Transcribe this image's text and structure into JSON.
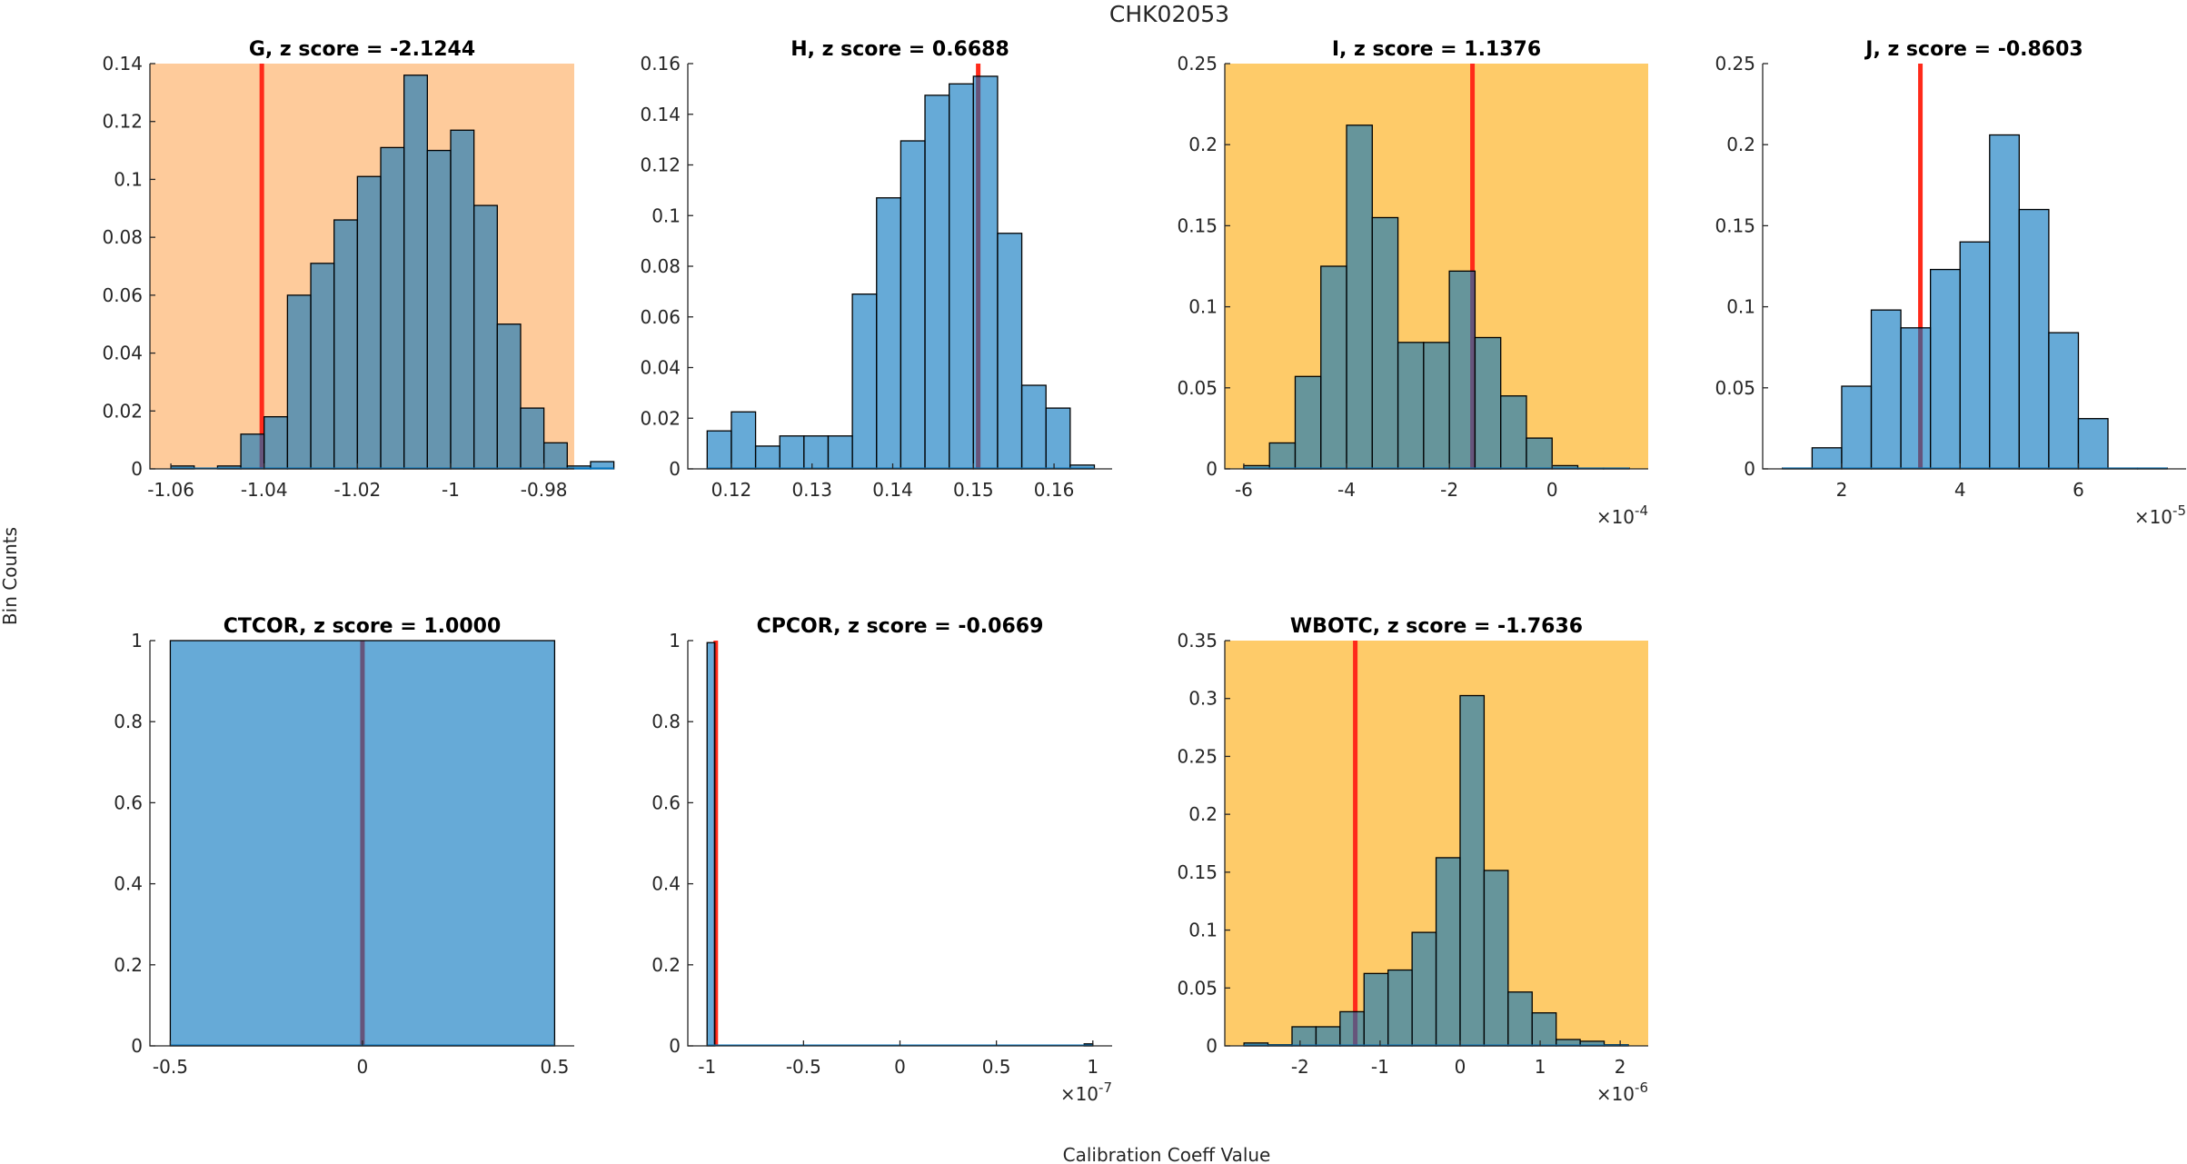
{
  "figure": {
    "title": "CHK02053",
    "xlabel": "Calibration Coeff Value",
    "ylabel": "Bin Counts"
  },
  "colors": {
    "bar_face": "#0072bd",
    "bar_alpha": 0.6,
    "bar_edge": "#000000",
    "marker_line": "#ff2a1a",
    "highlight_orange": "#fecb9b",
    "highlight_yellow": "#fecb69",
    "plain_bg": "#ffffff"
  },
  "chart_data": [
    {
      "type": "bar",
      "title": "G, z score = -2.1244",
      "name": "G",
      "z_score": -2.1244,
      "background": "orange",
      "bin_edges": [
        -1.06,
        -1.055,
        -1.05,
        -1.045,
        -1.04,
        -1.035,
        -1.03,
        -1.025,
        -1.02,
        -1.015,
        -1.01,
        -1.005,
        -1.0,
        -0.995,
        -0.99,
        -0.985,
        -0.98,
        -0.975,
        -0.97,
        -0.965
      ],
      "values": [
        0.001,
        0.0,
        0.001,
        0.012,
        0.018,
        0.06,
        0.071,
        0.086,
        0.101,
        0.111,
        0.136,
        0.11,
        0.117,
        0.091,
        0.05,
        0.021,
        0.009,
        0.001,
        0.0025
      ],
      "marker_value": -1.0405,
      "xlim": [
        -1.0645,
        -0.9735
      ],
      "ylim": [
        0,
        0.14
      ],
      "xticks": [
        -1.06,
        -1.04,
        -1.02,
        -1,
        -0.98
      ],
      "xtick_labels": [
        "-1.06",
        "-1.04",
        "-1.02",
        "-1",
        "-0.98"
      ],
      "yticks": [
        0,
        0.02,
        0.04,
        0.06,
        0.08,
        0.1,
        0.12,
        0.14
      ],
      "ytick_labels": [
        "0",
        "0.02",
        "0.04",
        "0.06",
        "0.08",
        "0.1",
        "0.12",
        "0.14"
      ],
      "x_exponent": ""
    },
    {
      "type": "bar",
      "title": "H, z score = 0.6688",
      "name": "H",
      "z_score": 0.6688,
      "background": "white",
      "bin_edges": [
        0.117,
        0.12,
        0.123,
        0.126,
        0.129,
        0.132,
        0.135,
        0.138,
        0.141,
        0.144,
        0.147,
        0.15,
        0.153,
        0.156,
        0.159,
        0.162,
        0.165
      ],
      "values": [
        0.015,
        0.0225,
        0.009,
        0.013,
        0.013,
        0.013,
        0.069,
        0.107,
        0.1295,
        0.1475,
        0.152,
        0.155,
        0.093,
        0.033,
        0.024,
        0.0015
      ],
      "marker_value": 0.1506,
      "xlim": [
        0.1146,
        0.1672
      ],
      "ylim": [
        0,
        0.16
      ],
      "xticks": [
        0.12,
        0.13,
        0.14,
        0.15,
        0.16
      ],
      "xtick_labels": [
        "0.12",
        "0.13",
        "0.14",
        "0.15",
        "0.16"
      ],
      "yticks": [
        0,
        0.02,
        0.04,
        0.06,
        0.08,
        0.1,
        0.12,
        0.14,
        0.16
      ],
      "ytick_labels": [
        "0",
        "0.02",
        "0.04",
        "0.06",
        "0.08",
        "0.1",
        "0.12",
        "0.14",
        "0.16"
      ],
      "x_exponent": ""
    },
    {
      "type": "bar",
      "title": "I, z score = 1.1376",
      "name": "I",
      "z_score": 1.1376,
      "background": "yellow",
      "bin_edges": [
        -6,
        -5.5,
        -5,
        -4.5,
        -4,
        -3.5,
        -3,
        -2.5,
        -2,
        -1.5,
        -1,
        -0.5,
        0,
        0.5,
        1,
        1.5
      ],
      "values": [
        0.002,
        0.016,
        0.057,
        0.125,
        0.212,
        0.155,
        0.078,
        0.078,
        0.122,
        0.081,
        0.045,
        0.019,
        0.002,
        0.0005,
        0.0005
      ],
      "marker_value": -1.55,
      "xlim": [
        -6.37,
        1.87
      ],
      "ylim": [
        0,
        0.25
      ],
      "xticks": [
        -6,
        -4,
        -2,
        0
      ],
      "xtick_labels": [
        "-6",
        "-4",
        "-2",
        "0"
      ],
      "yticks": [
        0,
        0.05,
        0.1,
        0.15,
        0.2,
        0.25
      ],
      "ytick_labels": [
        "0",
        "0.05",
        "0.1",
        "0.15",
        "0.2",
        "0.25"
      ],
      "x_exponent": "-4"
    },
    {
      "type": "bar",
      "title": "J, z score = -0.8603",
      "name": "J",
      "z_score": -0.8603,
      "background": "white",
      "bin_edges": [
        1,
        1.5,
        2,
        2.5,
        3,
        3.5,
        4,
        4.5,
        5,
        5.5,
        6,
        6.5,
        7,
        7.5
      ],
      "values": [
        0.0005,
        0.013,
        0.051,
        0.098,
        0.087,
        0.123,
        0.14,
        0.206,
        0.16,
        0.084,
        0.031,
        0.0005,
        0.0005
      ],
      "marker_value": 3.33,
      "xlim": [
        0.665,
        7.82
      ],
      "ylim": [
        0,
        0.25
      ],
      "xticks": [
        2,
        4,
        6
      ],
      "xtick_labels": [
        "2",
        "4",
        "6"
      ],
      "yticks": [
        0,
        0.05,
        0.1,
        0.15,
        0.2,
        0.25
      ],
      "ytick_labels": [
        "0",
        "0.05",
        "0.1",
        "0.15",
        "0.2",
        "0.25"
      ],
      "x_exponent": "-5"
    },
    {
      "type": "bar",
      "title": "CTCOR, z score = 1.0000",
      "name": "CTCOR",
      "z_score": 1.0,
      "background": "white",
      "bin_edges": [
        -0.5,
        0.5
      ],
      "values": [
        1.0
      ],
      "marker_value": 0,
      "xlim": [
        -0.553,
        0.551
      ],
      "ylim": [
        0,
        1
      ],
      "xticks": [
        -0.5,
        0,
        0.5
      ],
      "xtick_labels": [
        "-0.5",
        "0",
        "0.5"
      ],
      "yticks": [
        0,
        0.2,
        0.4,
        0.6,
        0.8,
        1
      ],
      "ytick_labels": [
        "0",
        "0.2",
        "0.4",
        "0.6",
        "0.8",
        "1"
      ],
      "x_exponent": ""
    },
    {
      "type": "bar",
      "title": "CPCOR, z score = -0.0669",
      "name": "CPCOR",
      "z_score": -0.0669,
      "background": "white",
      "bin_edges": [
        -1,
        -0.96,
        0.955,
        1
      ],
      "values": [
        0.995,
        0.0,
        0.005
      ],
      "marker_value": -0.955,
      "xlim": [
        -1.1,
        1.1
      ],
      "ylim": [
        0,
        1
      ],
      "xticks": [
        -1,
        -0.5,
        0,
        0.5,
        1
      ],
      "xtick_labels": [
        "-1",
        "-0.5",
        "0",
        "0.5",
        "1"
      ],
      "yticks": [
        0,
        0.2,
        0.4,
        0.6,
        0.8,
        1
      ],
      "ytick_labels": [
        "0",
        "0.2",
        "0.4",
        "0.6",
        "0.8",
        "1"
      ],
      "x_exponent": "-7"
    },
    {
      "type": "bar",
      "title": "WBOTC, z score = -1.7636",
      "name": "WBOTC",
      "z_score": -1.7636,
      "background": "yellow",
      "bin_edges": [
        -2.7,
        -2.4,
        -2.1,
        -1.8,
        -1.5,
        -1.2,
        -0.9,
        -0.6,
        -0.3,
        0,
        0.3,
        0.6,
        0.9,
        1.2,
        1.5,
        1.8,
        2.1
      ],
      "values": [
        0.0025,
        0.001,
        0.0165,
        0.0165,
        0.0295,
        0.0625,
        0.0655,
        0.098,
        0.1625,
        0.3025,
        0.1515,
        0.0465,
        0.0285,
        0.0055,
        0.004,
        0.001
      ],
      "marker_value": -1.31,
      "xlim": [
        -2.94,
        2.35
      ],
      "ylim": [
        0,
        0.35
      ],
      "xticks": [
        -2,
        -1,
        0,
        1,
        2
      ],
      "xtick_labels": [
        "-2",
        "-1",
        "0",
        "1",
        "2"
      ],
      "yticks": [
        0,
        0.05,
        0.1,
        0.15,
        0.2,
        0.25,
        0.3,
        0.35
      ],
      "ytick_labels": [
        "0",
        "0.05",
        "0.1",
        "0.15",
        "0.2",
        "0.25",
        "0.3",
        "0.35"
      ],
      "x_exponent": "-6"
    }
  ]
}
